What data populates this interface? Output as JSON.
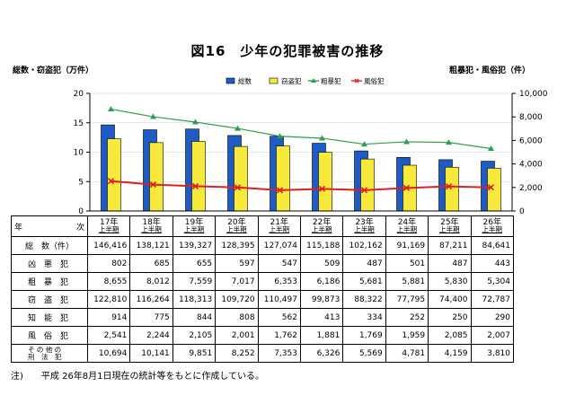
{
  "title": "図16　少年の犯罪被害の推移",
  "chart_data": {
    "type": "bar",
    "left_axis_label": "総数・窃盗犯（万件）",
    "right_axis_label": "粗暴犯・風俗犯（件）",
    "categories": [
      "17年",
      "18年",
      "19年",
      "20年",
      "21年",
      "22年",
      "23年",
      "24年",
      "25年",
      "26年"
    ],
    "category_sublabel": "上半期",
    "ylim_left": [
      0,
      20
    ],
    "yticks_left": [
      "0",
      "5",
      "10",
      "15",
      "20"
    ],
    "ylim_right": [
      0,
      10000
    ],
    "yticks_right": [
      "0",
      "2,000",
      "4,000",
      "6,000",
      "8,000",
      "10,000"
    ],
    "series": [
      {
        "name": "総数",
        "type": "bar",
        "axis": "left",
        "color": "#1f5bc4",
        "values": [
          14.6416,
          13.8121,
          13.9327,
          12.8395,
          12.7074,
          11.5188,
          10.2162,
          9.1169,
          8.7211,
          8.4641
        ]
      },
      {
        "name": "窃盗犯",
        "type": "bar",
        "axis": "left",
        "color": "#f7ea3c",
        "values": [
          12.281,
          11.6264,
          11.8313,
          10.972,
          11.0497,
          9.9873,
          8.8322,
          7.7795,
          7.44,
          7.2787
        ]
      },
      {
        "name": "粗暴犯",
        "type": "line",
        "axis": "right",
        "color": "#2e9e4f",
        "values": [
          8655,
          8012,
          7559,
          7017,
          6353,
          6186,
          5681,
          5881,
          5830,
          5304
        ]
      },
      {
        "name": "風俗犯",
        "type": "line",
        "axis": "right",
        "color": "#e02020",
        "values": [
          2541,
          2244,
          2105,
          2001,
          1762,
          1881,
          1769,
          1959,
          2085,
          2007
        ]
      }
    ]
  },
  "table": {
    "corner_left": "年",
    "corner_right": "次",
    "years": [
      "17年",
      "18年",
      "19年",
      "20年",
      "21年",
      "22年",
      "23年",
      "24年",
      "25年",
      "26年"
    ],
    "sublabel": "上半期",
    "rows": [
      {
        "label": "総　数（件）",
        "values": [
          "146,416",
          "138,121",
          "139,327",
          "128,395",
          "127,074",
          "115,188",
          "102,162",
          "91,169",
          "87,211",
          "84,641"
        ]
      },
      {
        "label": "凶　悪　犯",
        "values": [
          "802",
          "685",
          "655",
          "597",
          "547",
          "509",
          "487",
          "501",
          "487",
          "443"
        ]
      },
      {
        "label": "粗　暴　犯",
        "values": [
          "8,655",
          "8,012",
          "7,559",
          "7,017",
          "6,353",
          "6,186",
          "5,681",
          "5,881",
          "5,830",
          "5,304"
        ]
      },
      {
        "label": "窃　盗　犯",
        "values": [
          "122,810",
          "116,264",
          "118,313",
          "109,720",
          "110,497",
          "99,873",
          "88,322",
          "77,795",
          "74,400",
          "72,787"
        ]
      },
      {
        "label": "知　能　犯",
        "values": [
          "914",
          "775",
          "844",
          "808",
          "562",
          "413",
          "334",
          "252",
          "250",
          "290"
        ]
      },
      {
        "label": "風　俗　犯",
        "values": [
          "2,541",
          "2,244",
          "2,105",
          "2,001",
          "1,762",
          "1,881",
          "1,769",
          "1,959",
          "2,085",
          "2,007"
        ]
      },
      {
        "label": "その他の刑法犯",
        "label_line1": "そ の 他 の",
        "label_line2": "刑　法　犯",
        "values": [
          "10,694",
          "10,141",
          "9,851",
          "8,252",
          "7,353",
          "6,326",
          "5,569",
          "4,781",
          "4,159",
          "3,810"
        ]
      }
    ]
  },
  "footnote": "注)　　平成 26年8月1日現在の統計等をもとに作成している。"
}
